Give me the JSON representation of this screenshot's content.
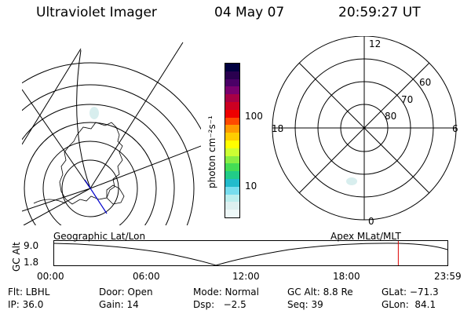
{
  "header": {
    "instrument": "Ultraviolet Imager",
    "date": "04 May 07",
    "time": "20:59:27 UT"
  },
  "colorbar": {
    "unit_label": "photon cm⁻²s⁻¹",
    "tick_100": "100",
    "tick_10": "10",
    "colors": [
      "#000040",
      "#2a004f",
      "#4a0066",
      "#7a006e",
      "#a80045",
      "#cc0022",
      "#ee0000",
      "#ff4a00",
      "#ff9a00",
      "#ffcc00",
      "#ffff00",
      "#ccff33",
      "#88ee44",
      "#44dd55",
      "#22cc88",
      "#22bbcc",
      "#77ddee",
      "#bbeeee",
      "#ddf0f0",
      "#eef8f8"
    ]
  },
  "right_plot": {
    "mlt_labels": {
      "top": "12",
      "left": "18",
      "right": "6",
      "bottom": "0"
    },
    "lat_labels": [
      "60",
      "70",
      "80"
    ]
  },
  "timeline": {
    "left_title": "Geographic Lat/Lon",
    "right_title": "Apex MLat/MLT",
    "axis_label": "GC Alt",
    "y_top": "9.0",
    "y_bottom": "1.8",
    "x_ticks": [
      "00:00",
      "06:00",
      "12:00",
      "18:00",
      "23:59"
    ],
    "current_time_fraction": 0.875
  },
  "footer": {
    "filter": "Flt: LBHL",
    "door": "Door: Open",
    "mode": "Mode: Normal",
    "gc_alt": "GC Alt: 8.8 Re",
    "glat": "GLat: −71.3",
    "ip": "IP: 36.0",
    "gain": "Gain: 14",
    "dsp": "Dsp:   −2.5",
    "seq": "Seq: 39",
    "glon": "GLon:  84.1"
  }
}
